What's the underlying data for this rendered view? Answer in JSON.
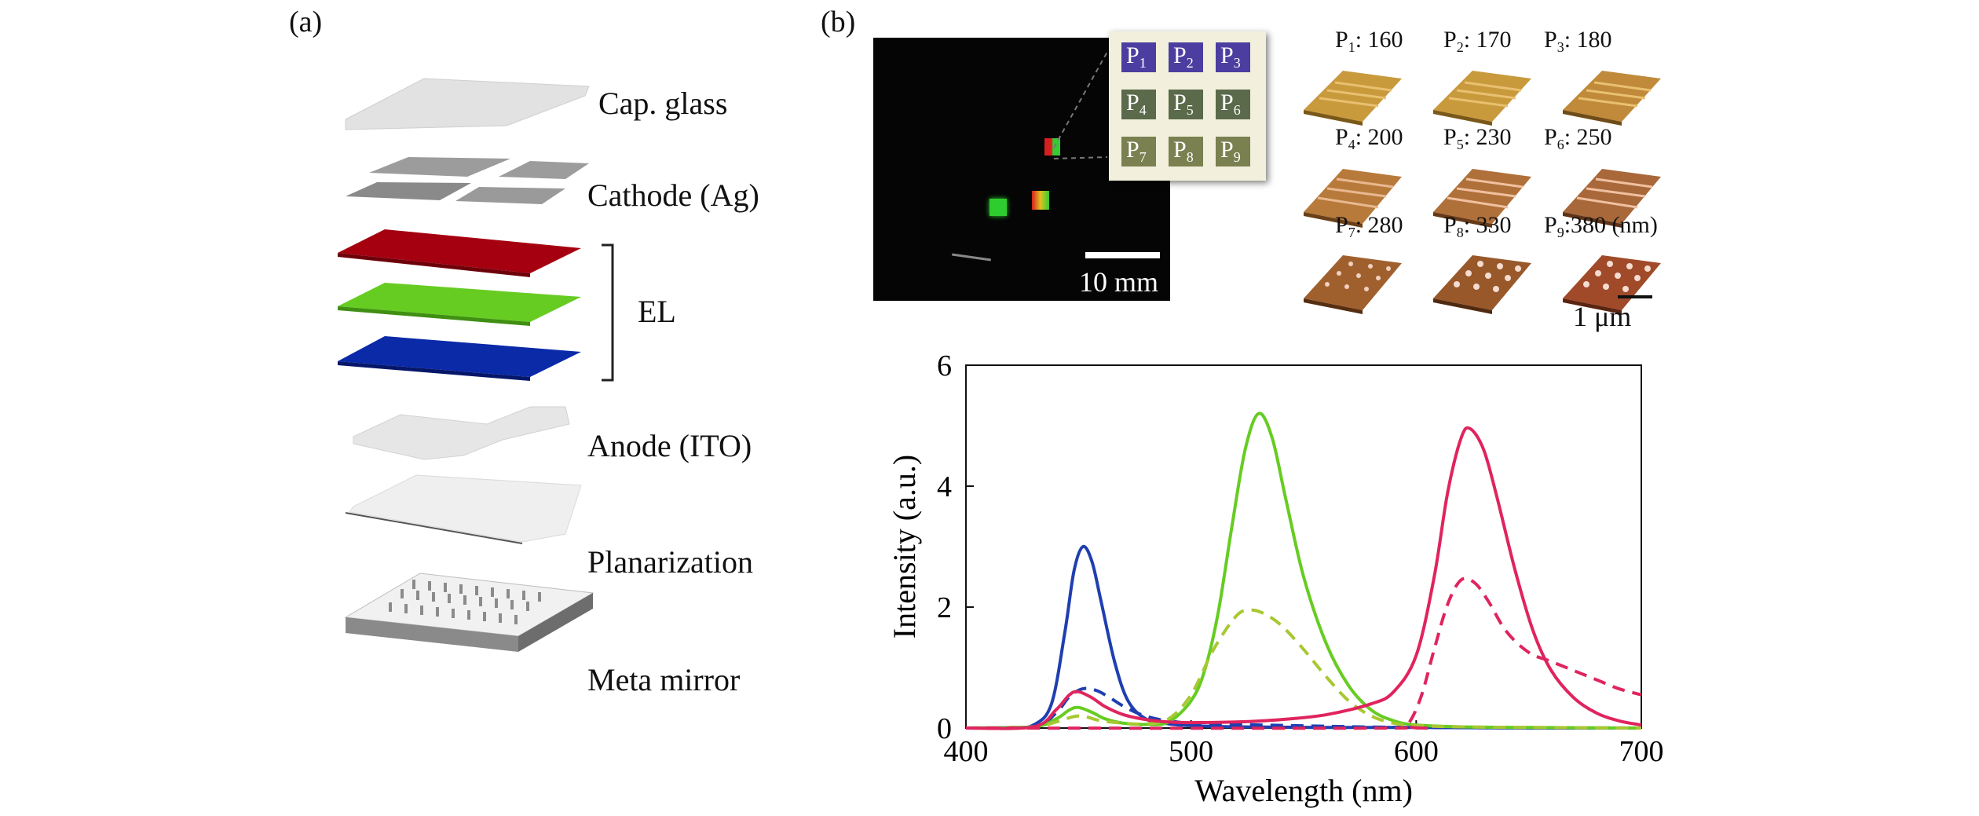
{
  "panel_a": {
    "label": "(a)",
    "layers": [
      {
        "name": "Cap. glass"
      },
      {
        "name": "Cathode (Ag)"
      },
      {
        "name": "EL"
      },
      {
        "name": "Anode (ITO)"
      },
      {
        "name": "Planarization"
      },
      {
        "name": "Meta mirror"
      }
    ],
    "el_colors": {
      "red": "#a40010",
      "green": "#66cc22",
      "blue": "#0a2aa8"
    }
  },
  "panel_b": {
    "label": "(b)",
    "photo_scale": "10 mm",
    "pixel_labels": [
      "P",
      "P",
      "P",
      "P",
      "P",
      "P",
      "P",
      "P",
      "P"
    ],
    "pixel_subscripts": [
      "1",
      "2",
      "3",
      "4",
      "5",
      "6",
      "7",
      "8",
      "9"
    ],
    "afm": [
      {
        "p": "P",
        "sub": "1",
        "value": ": 160"
      },
      {
        "p": "P",
        "sub": "2",
        "value": ": 170"
      },
      {
        "p": "P",
        "sub": "3",
        "value": ": 180"
      },
      {
        "p": "P",
        "sub": "4",
        "value": ": 200"
      },
      {
        "p": "P",
        "sub": "5",
        "value": ": 230"
      },
      {
        "p": "P",
        "sub": "6",
        "value": ": 250"
      },
      {
        "p": "P",
        "sub": "7",
        "value": ": 280"
      },
      {
        "p": "P",
        "sub": "8",
        "value": ": 330"
      },
      {
        "p": "P",
        "sub": "9",
        "value": ":380 (nm)"
      }
    ],
    "afm_scale": "1 μm"
  },
  "chart_data": {
    "type": "line",
    "title": "",
    "xlabel": "Wavelength (nm)",
    "ylabel": "Intensity (a.u.)",
    "xlim": [
      400,
      700
    ],
    "ylim": [
      0,
      6
    ],
    "xticks": [
      400,
      500,
      600,
      700
    ],
    "yticks": [
      0,
      2,
      4,
      6
    ],
    "grid": false,
    "series": [
      {
        "style": "solid",
        "color": "#1f3fb0",
        "x": [
          400,
          420,
          430,
          438,
          444,
          448,
          452,
          456,
          460,
          466,
          472,
          480,
          490,
          500,
          520,
          560,
          600,
          650,
          700
        ],
        "y": [
          0,
          0.01,
          0.05,
          0.4,
          1.6,
          2.6,
          3.0,
          2.75,
          2.1,
          1.1,
          0.45,
          0.15,
          0.07,
          0.04,
          0.02,
          0.01,
          0.01,
          0,
          0
        ]
      },
      {
        "style": "dashed",
        "color": "#1f3fb0",
        "x": [
          400,
          430,
          440,
          446,
          452,
          458,
          464,
          470,
          478,
          486,
          494,
          500,
          520,
          560,
          600,
          700
        ],
        "y": [
          0,
          0.02,
          0.25,
          0.52,
          0.65,
          0.62,
          0.5,
          0.36,
          0.22,
          0.14,
          0.1,
          0.08,
          0.06,
          0.03,
          0.01,
          0
        ]
      },
      {
        "style": "solid",
        "color": "#66cc22",
        "x": [
          400,
          430,
          440,
          446,
          450,
          456,
          462,
          470,
          480,
          490,
          500,
          506,
          512,
          518,
          524,
          530,
          536,
          542,
          550,
          560,
          570,
          580,
          590,
          600,
          620,
          650,
          700
        ],
        "y": [
          0,
          0.02,
          0.15,
          0.3,
          0.34,
          0.26,
          0.15,
          0.08,
          0.06,
          0.1,
          0.45,
          0.95,
          1.9,
          3.3,
          4.6,
          5.2,
          4.8,
          3.8,
          2.5,
          1.4,
          0.7,
          0.3,
          0.12,
          0.05,
          0.02,
          0.01,
          0
        ]
      },
      {
        "style": "dashed",
        "color": "#a8c832",
        "x": [
          400,
          430,
          440,
          450,
          460,
          470,
          480,
          490,
          500,
          510,
          520,
          526,
          532,
          540,
          550,
          560,
          570,
          580,
          590,
          600,
          620,
          650,
          700
        ],
        "y": [
          0,
          0.02,
          0.1,
          0.2,
          0.12,
          0.08,
          0.07,
          0.15,
          0.55,
          1.3,
          1.85,
          1.95,
          1.9,
          1.7,
          1.3,
          0.85,
          0.45,
          0.2,
          0.08,
          0.04,
          0.02,
          0.01,
          0
        ]
      },
      {
        "style": "solid",
        "color": "#e0245e",
        "x": [
          400,
          430,
          440,
          446,
          450,
          456,
          462,
          470,
          480,
          490,
          500,
          520,
          540,
          560,
          580,
          590,
          600,
          608,
          614,
          620,
          624,
          630,
          636,
          644,
          652,
          660,
          670,
          680,
          690,
          700
        ],
        "y": [
          0,
          0.02,
          0.3,
          0.55,
          0.6,
          0.5,
          0.35,
          0.22,
          0.14,
          0.1,
          0.09,
          0.1,
          0.14,
          0.22,
          0.4,
          0.6,
          1.2,
          2.5,
          3.9,
          4.8,
          4.95,
          4.6,
          3.8,
          2.6,
          1.6,
          0.95,
          0.5,
          0.25,
          0.12,
          0.05
        ]
      },
      {
        "style": "dashed",
        "color": "#e0245e",
        "x": [
          400,
          590,
          596,
          602,
          608,
          614,
          620,
          626,
          632,
          640,
          650,
          660,
          670,
          680,
          690,
          700
        ],
        "y": [
          0,
          0,
          0.05,
          0.5,
          1.3,
          2.05,
          2.45,
          2.4,
          2.1,
          1.6,
          1.25,
          1.1,
          0.95,
          0.8,
          0.65,
          0.55
        ]
      }
    ]
  }
}
